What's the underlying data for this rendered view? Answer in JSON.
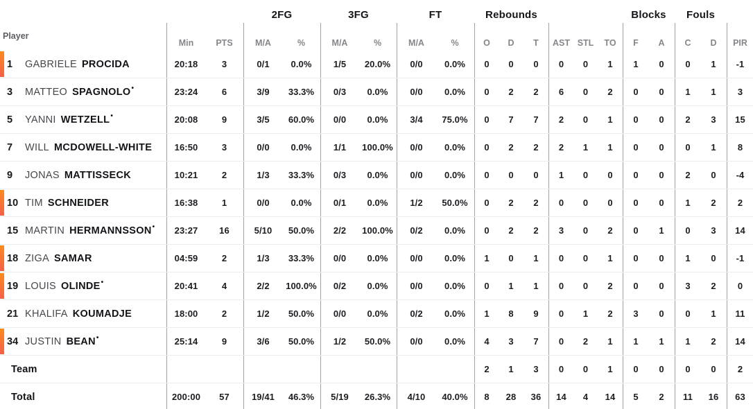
{
  "table": {
    "player_header": "Player",
    "starter_mark": "•",
    "accent_top": "#FA8B1E",
    "accent_bottom": "#F75F49",
    "groups": [
      {
        "label": "2FG"
      },
      {
        "label": "3FG"
      },
      {
        "label": "FT"
      },
      {
        "label": "Rebounds"
      },
      {
        "label": "Blocks"
      },
      {
        "label": "Fouls"
      }
    ],
    "sub_headers": [
      "Min",
      "PTS",
      "M/A",
      "%",
      "M/A",
      "%",
      "M/A",
      "%",
      "O",
      "D",
      "T",
      "AST",
      "STL",
      "TO",
      "F",
      "A",
      "C",
      "D",
      "PIR"
    ],
    "rows": [
      {
        "number": "1",
        "first": "GABRIELE",
        "last": "PROCIDA",
        "starter": false,
        "on_court": true,
        "stats": [
          "20:18",
          "3",
          "0/1",
          "0.0%",
          "1/5",
          "20.0%",
          "0/0",
          "0.0%",
          "0",
          "0",
          "0",
          "0",
          "0",
          "1",
          "1",
          "0",
          "0",
          "1",
          "-1"
        ]
      },
      {
        "number": "3",
        "first": "MATTEO",
        "last": "SPAGNOLO",
        "starter": true,
        "on_court": false,
        "stats": [
          "23:24",
          "6",
          "3/9",
          "33.3%",
          "0/3",
          "0.0%",
          "0/0",
          "0.0%",
          "0",
          "2",
          "2",
          "6",
          "0",
          "2",
          "0",
          "0",
          "1",
          "1",
          "3"
        ]
      },
      {
        "number": "5",
        "first": "YANNI",
        "last": "WETZELL",
        "starter": true,
        "on_court": false,
        "stats": [
          "20:08",
          "9",
          "3/5",
          "60.0%",
          "0/0",
          "0.0%",
          "3/4",
          "75.0%",
          "0",
          "7",
          "7",
          "2",
          "0",
          "1",
          "0",
          "0",
          "2",
          "3",
          "15"
        ]
      },
      {
        "number": "7",
        "first": "WILL",
        "last": "MCDOWELL-WHITE",
        "starter": false,
        "on_court": false,
        "stats": [
          "16:50",
          "3",
          "0/0",
          "0.0%",
          "1/1",
          "100.0%",
          "0/0",
          "0.0%",
          "0",
          "2",
          "2",
          "2",
          "1",
          "1",
          "0",
          "0",
          "0",
          "1",
          "8"
        ]
      },
      {
        "number": "9",
        "first": "JONAS",
        "last": "MATTISSECK",
        "starter": false,
        "on_court": false,
        "stats": [
          "10:21",
          "2",
          "1/3",
          "33.3%",
          "0/3",
          "0.0%",
          "0/0",
          "0.0%",
          "0",
          "0",
          "0",
          "1",
          "0",
          "0",
          "0",
          "0",
          "2",
          "0",
          "-4"
        ]
      },
      {
        "number": "10",
        "first": "TIM",
        "last": "SCHNEIDER",
        "starter": false,
        "on_court": true,
        "stats": [
          "16:38",
          "1",
          "0/0",
          "0.0%",
          "0/1",
          "0.0%",
          "1/2",
          "50.0%",
          "0",
          "2",
          "2",
          "0",
          "0",
          "0",
          "0",
          "0",
          "1",
          "2",
          "2"
        ]
      },
      {
        "number": "15",
        "first": "MARTIN",
        "last": "HERMANNSSON",
        "starter": true,
        "on_court": false,
        "stats": [
          "23:27",
          "16",
          "5/10",
          "50.0%",
          "2/2",
          "100.0%",
          "0/2",
          "0.0%",
          "0",
          "2",
          "2",
          "3",
          "0",
          "2",
          "0",
          "1",
          "0",
          "3",
          "14"
        ]
      },
      {
        "number": "18",
        "first": "ZIGA",
        "last": "SAMAR",
        "starter": false,
        "on_court": true,
        "stats": [
          "04:59",
          "2",
          "1/3",
          "33.3%",
          "0/0",
          "0.0%",
          "0/0",
          "0.0%",
          "1",
          "0",
          "1",
          "0",
          "0",
          "1",
          "0",
          "0",
          "1",
          "0",
          "-1"
        ]
      },
      {
        "number": "19",
        "first": "LOUIS",
        "last": "OLINDE",
        "starter": true,
        "on_court": true,
        "stats": [
          "20:41",
          "4",
          "2/2",
          "100.0%",
          "0/2",
          "0.0%",
          "0/0",
          "0.0%",
          "0",
          "1",
          "1",
          "0",
          "0",
          "2",
          "0",
          "0",
          "3",
          "2",
          "0"
        ]
      },
      {
        "number": "21",
        "first": "KHALIFA",
        "last": "KOUMADJE",
        "starter": false,
        "on_court": false,
        "stats": [
          "18:00",
          "2",
          "1/2",
          "50.0%",
          "0/0",
          "0.0%",
          "0/2",
          "0.0%",
          "1",
          "8",
          "9",
          "0",
          "1",
          "2",
          "3",
          "0",
          "0",
          "1",
          "11"
        ]
      },
      {
        "number": "34",
        "first": "JUSTIN",
        "last": "BEAN",
        "starter": true,
        "on_court": true,
        "stats": [
          "25:14",
          "9",
          "3/6",
          "50.0%",
          "1/2",
          "50.0%",
          "0/0",
          "0.0%",
          "4",
          "3",
          "7",
          "0",
          "2",
          "1",
          "1",
          "1",
          "1",
          "2",
          "14"
        ]
      }
    ],
    "summary_rows": [
      {
        "label": "Team",
        "stats": [
          "",
          "",
          "",
          "",
          "",
          "",
          "",
          "",
          "2",
          "1",
          "3",
          "0",
          "0",
          "1",
          "0",
          "0",
          "0",
          "0",
          "2"
        ]
      },
      {
        "label": "Total",
        "stats": [
          "200:00",
          "57",
          "19/41",
          "46.3%",
          "5/19",
          "26.3%",
          "4/10",
          "40.0%",
          "8",
          "28",
          "36",
          "14",
          "4",
          "14",
          "5",
          "2",
          "11",
          "16",
          "63"
        ]
      }
    ]
  }
}
